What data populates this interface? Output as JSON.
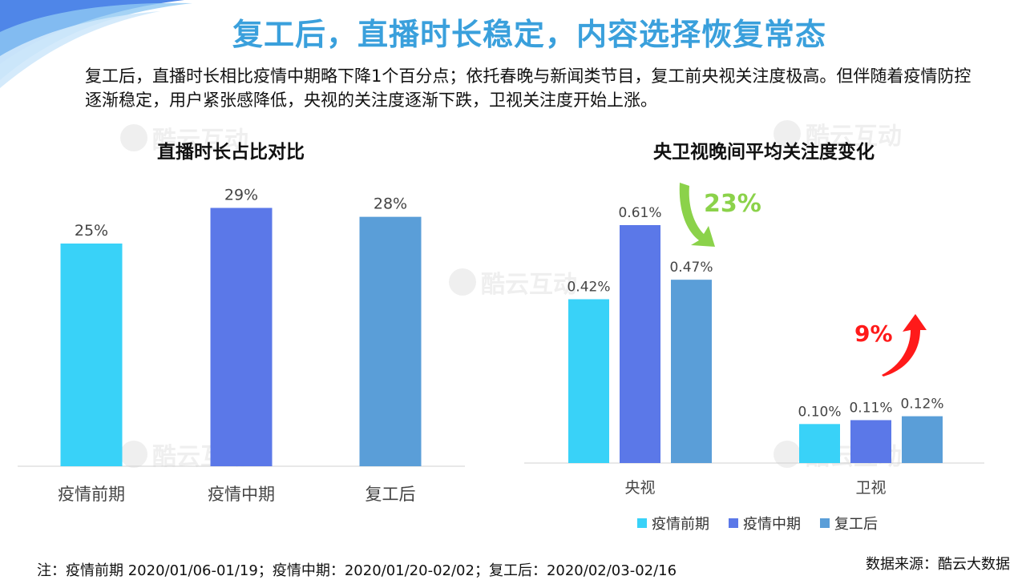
{
  "title": "复工后，直播时长稳定，内容选择恢复常态",
  "description": "复工后，直播时长相比疫情中期略下降1个百分点；依托春晚与新闻类节目，复工前央视关注度极高。但伴随着疫情防控逐渐稳定，用户紧张感降低，央视的关注度逐渐下跌，卫视关注度开始上涨。",
  "watermark": "酷云互动",
  "note": "注：疫情前期 2020/01/06-01/19；疫情中期：2020/01/20-02/02；复工后：2020/02/03-02/16",
  "source": "数据来源：酷云大数据",
  "colors": {
    "period1": "#39d2f8",
    "period2": "#5b78e8",
    "period3": "#5a9ed8",
    "decrease_arrow": "#8bd24a",
    "increase_arrow": "#ff1a1a"
  },
  "chart_data": [
    {
      "type": "bar",
      "title": "直播时长占比对比",
      "categories": [
        "疫情前期",
        "疫情中期",
        "复工后"
      ],
      "values": [
        25,
        29,
        28
      ],
      "labels": [
        "25%",
        "29%",
        "28%"
      ],
      "ylim": [
        0,
        32
      ],
      "grid": false,
      "legend": "none"
    },
    {
      "type": "bar",
      "title": "央卫视晚间平均关注度变化",
      "categories": [
        "央视",
        "卫视"
      ],
      "series": [
        {
          "name": "疫情前期",
          "values": [
            0.42,
            0.1
          ],
          "labels": [
            "0.42%",
            "0.10%"
          ]
        },
        {
          "name": "疫情中期",
          "values": [
            0.61,
            0.11
          ],
          "labels": [
            "0.61%",
            "0.11%"
          ]
        },
        {
          "name": "复工后",
          "values": [
            0.47,
            0.12
          ],
          "labels": [
            "0.47%",
            "0.12%"
          ]
        }
      ],
      "ylim": [
        0,
        0.8
      ],
      "grid": false,
      "legend": "bottom",
      "annotations": [
        {
          "text": "23%",
          "category": "央视",
          "direction": "down"
        },
        {
          "text": "9%",
          "category": "卫视",
          "direction": "up"
        }
      ]
    }
  ]
}
